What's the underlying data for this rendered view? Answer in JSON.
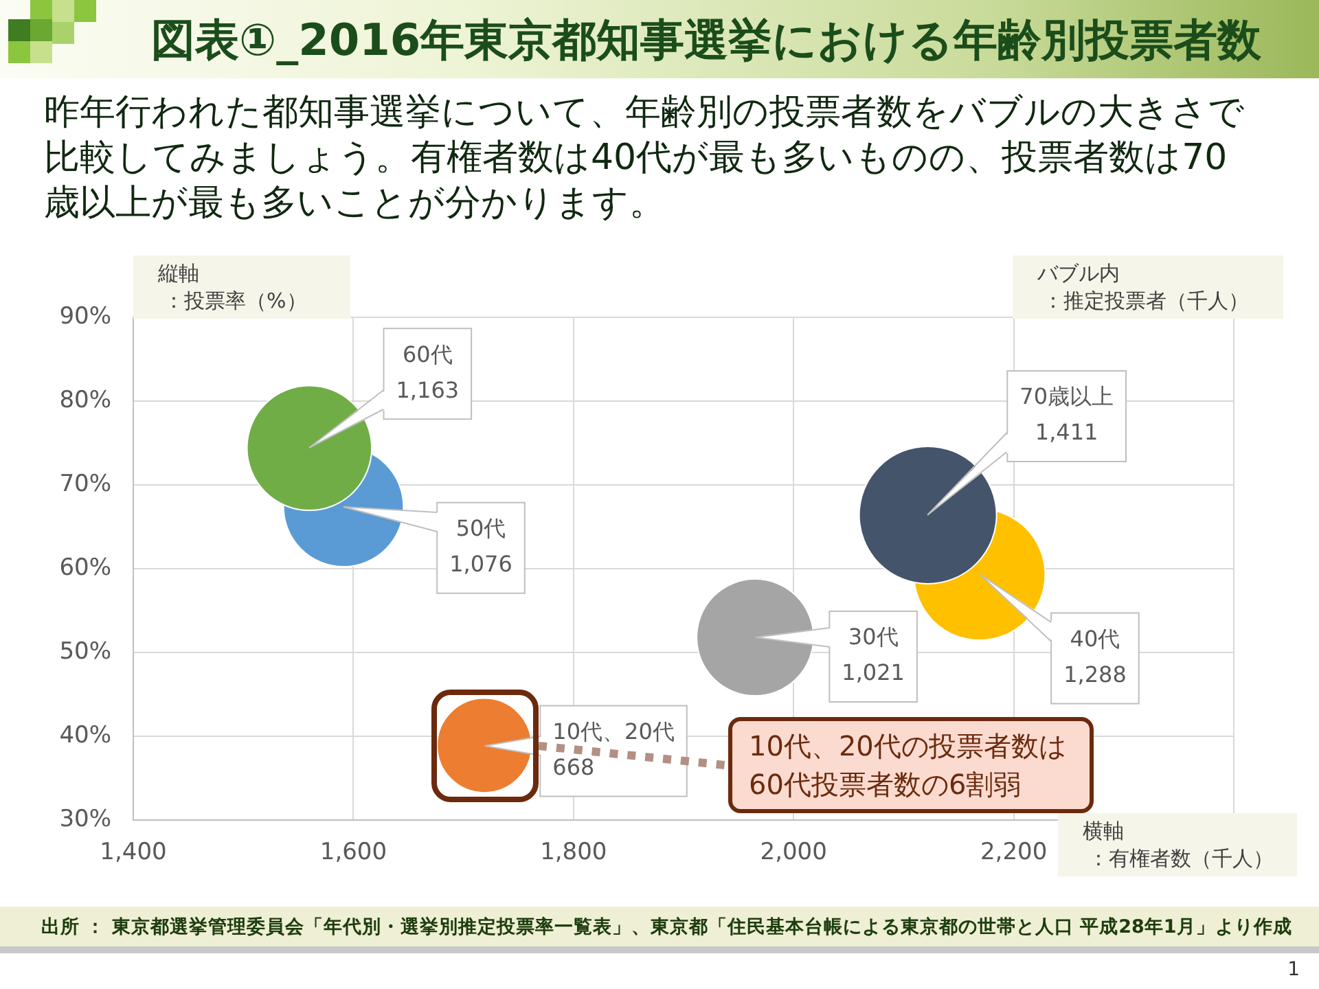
{
  "chart_data": {
    "type": "bubble",
    "title": "図表①_2016年東京都知事選挙における年齢別投票者数",
    "subtitle": "昨年行われた都知事選挙について、年齢別の投票者数をバブルの大きさで比較してみましょう。有権者数は40代が最も多いものの、投票者数は70歳以上が最も多いことが分かります。",
    "xlabel": "横軸：有権者数（千人）",
    "ylabel": "縦軸：投票率（%）",
    "series": [
      {
        "name": "10代、20代",
        "color": "#ed7d31",
        "x": [
          1719
        ],
        "values": [
          38.9
        ],
        "sizes": [
          668
        ],
        "value_labels": [
          "668"
        ]
      },
      {
        "name": "30代",
        "color": "#a5a5a5",
        "x": [
          1965
        ],
        "values": [
          51.8
        ],
        "sizes": [
          1021
        ],
        "value_labels": [
          "1,021"
        ]
      },
      {
        "name": "40代",
        "color": "#ffc000",
        "x": [
          2169
        ],
        "values": [
          59.3
        ],
        "sizes": [
          1288
        ],
        "value_labels": [
          "1,288"
        ]
      },
      {
        "name": "50代",
        "color": "#5b9bd5",
        "x": [
          1591
        ],
        "values": [
          67.4
        ],
        "sizes": [
          1076
        ],
        "value_labels": [
          "1,076"
        ]
      },
      {
        "name": "60代",
        "color": "#70ad47",
        "x": [
          1560
        ],
        "values": [
          74.4
        ],
        "sizes": [
          1163
        ],
        "value_labels": [
          "1,163"
        ]
      },
      {
        "name": "70歳以上",
        "color": "#44546a",
        "x": [
          2122
        ],
        "values": [
          66.4
        ],
        "sizes": [
          1411
        ],
        "value_labels": [
          "1,411"
        ]
      }
    ],
    "xlim": [
      1400,
      2400
    ],
    "xticks": [
      {
        "value": 1400,
        "label": "1,400"
      },
      {
        "value": 1600,
        "label": "1,600"
      },
      {
        "value": 1800,
        "label": "1,800"
      },
      {
        "value": 2000,
        "label": "2,000"
      },
      {
        "value": 2200,
        "label": "2,200"
      },
      {
        "value": 2400,
        "label": null
      }
    ],
    "ylim": [
      30,
      90
    ],
    "yticks": [
      {
        "value": 30,
        "label": "30%"
      },
      {
        "value": 40,
        "label": "40%"
      },
      {
        "value": 50,
        "label": "50%"
      },
      {
        "value": 60,
        "label": "60%"
      },
      {
        "value": 70,
        "label": "70%"
      },
      {
        "value": 80,
        "label": "80%"
      },
      {
        "value": 90,
        "label": "90%"
      }
    ],
    "grid": true,
    "annotations": [
      "10代、20代の投票者数は60代投票者数の6割弱",
      "バブル内：推定投票者（千人）",
      "出所 ： 東京都選挙管理委員会「年代別・選挙別推定投票率一覧表」、東京都「住民基本台帳による東京都の世帯と人口 平成28年1月」より作成",
      "1"
    ]
  }
}
